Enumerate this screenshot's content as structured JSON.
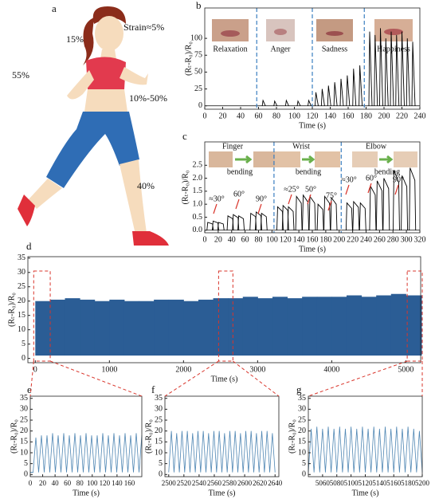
{
  "illustration": {
    "label": "a",
    "annotations": [
      "Strain≈5%",
      "15%",
      "55%",
      "10%-50%",
      "40%"
    ]
  },
  "chart_data": [
    {
      "type": "stem",
      "label": "b",
      "xlabel": "Time (s)",
      "ylabel": "(Rₜ-R₀)/R₀",
      "color": "#000000",
      "categories": [
        "Relaxation",
        "Anger",
        "Sadness",
        "Happiness"
      ],
      "dividers": [
        58,
        120,
        178
      ],
      "divider_color": "#3a7ec0",
      "x": [
        65,
        78,
        91,
        104,
        116,
        124,
        131,
        138,
        145,
        152,
        159,
        166,
        173,
        184,
        190,
        196,
        202,
        208,
        214,
        220,
        226,
        232
      ],
      "values": [
        8,
        7,
        8,
        7,
        8,
        20,
        25,
        30,
        35,
        40,
        45,
        55,
        60,
        110,
        105,
        115,
        100,
        110,
        105,
        110,
        100,
        95
      ],
      "xlim": [
        0,
        240
      ],
      "xticks": [
        0,
        20,
        40,
        60,
        80,
        100,
        120,
        140,
        160,
        180,
        200,
        220,
        240
      ],
      "ylim": [
        -5,
        145
      ],
      "yticks": [
        0,
        25,
        50,
        75,
        100
      ]
    },
    {
      "type": "pulse",
      "label": "c",
      "xlabel": "Time (s)",
      "ylabel": "(Rₜ-R₀)/R₀",
      "color": "#000000",
      "annotations": [
        "Finger",
        "bending",
        "Wrist",
        "bending",
        "Elbow",
        "bending",
        "≈30°",
        "60°",
        "90°",
        "≈25°",
        "50°",
        "75°",
        "≈30°",
        "60°",
        "90°"
      ],
      "dividers": [
        103,
        203
      ],
      "divider_color": "#3a7ec0",
      "x": [
        8,
        16,
        24,
        38,
        46,
        54,
        72,
        80,
        88,
        112,
        120,
        128,
        140,
        150,
        160,
        172,
        182,
        192,
        215,
        225,
        235,
        250,
        260,
        270,
        285,
        297,
        309
      ],
      "values": [
        0.3,
        0.35,
        0.3,
        0.55,
        0.6,
        0.55,
        0.65,
        0.7,
        0.65,
        0.9,
        0.95,
        0.9,
        1.3,
        1.35,
        1.3,
        1.0,
        1.3,
        1.25,
        1.05,
        1.1,
        1.05,
        1.7,
        1.9,
        2.0,
        2.3,
        2.1,
        2.4
      ],
      "xlim": [
        0,
        320
      ],
      "xticks": [
        0,
        20,
        40,
        60,
        80,
        100,
        120,
        140,
        160,
        180,
        200,
        220,
        240,
        260,
        280,
        300,
        320
      ],
      "ylim": [
        -0.1,
        3.4
      ],
      "yticks": [
        {
          "value": 0,
          "label": "0.0"
        },
        0.5,
        {
          "value": 1,
          "label": "1.0"
        },
        1.5,
        {
          "value": 2,
          "label": "2.0"
        },
        2.5
      ]
    },
    {
      "type": "band",
      "label": "d",
      "xlabel": "Time (s)",
      "ylabel": "(Rₜ-R₀)/R₀",
      "color": "#2b5d95",
      "x": [
        0,
        200,
        400,
        600,
        800,
        1000,
        1200,
        1400,
        1600,
        1800,
        2000,
        2200,
        2400,
        2600,
        2800,
        3000,
        3200,
        3400,
        3600,
        3800,
        4000,
        4200,
        4400,
        4600,
        4800,
        5000,
        5200
      ],
      "lower": [
        1,
        1,
        1,
        1,
        1,
        1,
        1,
        1,
        1,
        1,
        1,
        1,
        1,
        1,
        1,
        1,
        1,
        1,
        1,
        1,
        1,
        1,
        1,
        1,
        1,
        1,
        1
      ],
      "upper": [
        20,
        20.5,
        21,
        20.5,
        20,
        20.5,
        20,
        20,
        20.5,
        20.5,
        20,
        20.5,
        21,
        21,
        21.5,
        21,
        21.5,
        21,
        21.5,
        21.5,
        21.5,
        22,
        21.5,
        22,
        22.5,
        22,
        22
      ],
      "xlim": [
        -100,
        5200
      ],
      "xticks": [
        0,
        1000,
        2000,
        3000,
        4000,
        5000
      ],
      "ylim": [
        -1.5,
        35.5
      ],
      "yticks": [
        0,
        5,
        10,
        15,
        20,
        25,
        30,
        35
      ],
      "zoom_color": "#d9352b"
    },
    {
      "type": "line",
      "label": "e",
      "xlabel": "Time (s)",
      "ylabel": "(Rₜ-R₀)/R₀",
      "color": "#4f86b3",
      "x": [
        0,
        4.5,
        9,
        13.5,
        18,
        22.5,
        27,
        31.5,
        36,
        40.5,
        45,
        49.5,
        54,
        58.5,
        63,
        67.5,
        72,
        76.5,
        81,
        85.5,
        90,
        94.5,
        99,
        103.5,
        108,
        112.5,
        117,
        121.5,
        126,
        130.5,
        135,
        139.5,
        144,
        148.5,
        153,
        157.5,
        162,
        166.5,
        171,
        175.5,
        180
      ],
      "values": [
        1,
        1,
        17,
        1,
        18,
        1,
        18,
        1,
        19,
        1,
        18,
        1,
        19,
        1,
        18,
        1,
        19,
        1,
        18,
        1,
        19,
        1,
        18,
        1,
        18,
        1,
        19,
        1,
        18,
        1,
        19,
        1,
        18,
        1,
        19,
        1,
        18,
        1,
        19,
        1,
        18
      ],
      "xlim": [
        0,
        180
      ],
      "xticks": [
        0,
        20,
        40,
        60,
        80,
        100,
        120,
        140,
        160
      ],
      "ylim": [
        -1,
        36
      ],
      "yticks": [
        0,
        5,
        10,
        15,
        20,
        25,
        30,
        35
      ]
    },
    {
      "type": "line",
      "label": "f",
      "xlabel": "Time (s)",
      "ylabel": "(Rₜ-R₀)/R₀",
      "color": "#4f86b3",
      "x": [
        2500,
        2503.5,
        2507,
        2510.5,
        2514,
        2517.5,
        2521,
        2524.5,
        2528,
        2531.5,
        2535,
        2538.5,
        2542,
        2545.5,
        2549,
        2552.5,
        2556,
        2559.5,
        2563,
        2566.5,
        2570,
        2573.5,
        2577,
        2580.5,
        2584,
        2587.5,
        2591,
        2594.5,
        2598,
        2601.5,
        2605,
        2608.5,
        2612,
        2615.5,
        2619,
        2622.5,
        2626,
        2629.5,
        2633,
        2636.5,
        2640
      ],
      "values": [
        1,
        20,
        1,
        19,
        1,
        20,
        1,
        20,
        1,
        19,
        1,
        20,
        1,
        20,
        1,
        19,
        1,
        20,
        1,
        20,
        1,
        19,
        1,
        20,
        1,
        20,
        1,
        19,
        1,
        20,
        1,
        20,
        1,
        19,
        1,
        20,
        1,
        20,
        1,
        19,
        1
      ],
      "xlim": [
        2495,
        2645
      ],
      "xticks": [
        2500,
        2520,
        2540,
        2560,
        2580,
        2600,
        2620,
        2640
      ],
      "ylim": [
        -1,
        36
      ],
      "yticks": [
        0,
        5,
        10,
        15,
        20,
        25,
        30,
        35
      ]
    },
    {
      "type": "line",
      "label": "g",
      "xlabel": "Time (s)",
      "ylabel": "(Rₜ-R₀)/R₀",
      "color": "#4f86b3",
      "x": [
        5040,
        5044,
        5048,
        5052,
        5056,
        5060,
        5064,
        5068,
        5072,
        5076,
        5080,
        5084,
        5088,
        5092,
        5096,
        5100,
        5104,
        5108,
        5112,
        5116,
        5120,
        5124,
        5128,
        5132,
        5136,
        5140,
        5144,
        5148,
        5152,
        5156,
        5160,
        5164,
        5168,
        5172,
        5176,
        5180,
        5184,
        5188,
        5192,
        5196,
        5200
      ],
      "values": [
        1,
        21,
        1,
        22,
        1,
        21,
        1,
        22,
        1,
        21,
        1,
        22,
        1,
        21,
        1,
        22,
        1,
        21,
        1,
        22,
        1,
        21,
        1,
        22,
        1,
        21,
        1,
        22,
        1,
        21,
        1,
        22,
        1,
        21,
        1,
        22,
        1,
        21,
        1,
        20,
        1
      ],
      "xlim": [
        5040,
        5200
      ],
      "xticks": [
        5060,
        5080,
        5100,
        5120,
        5140,
        5160,
        5180,
        5200
      ],
      "ylim": [
        -1,
        36
      ],
      "yticks": [
        0,
        5,
        10,
        15,
        20,
        25,
        30,
        35
      ]
    }
  ]
}
